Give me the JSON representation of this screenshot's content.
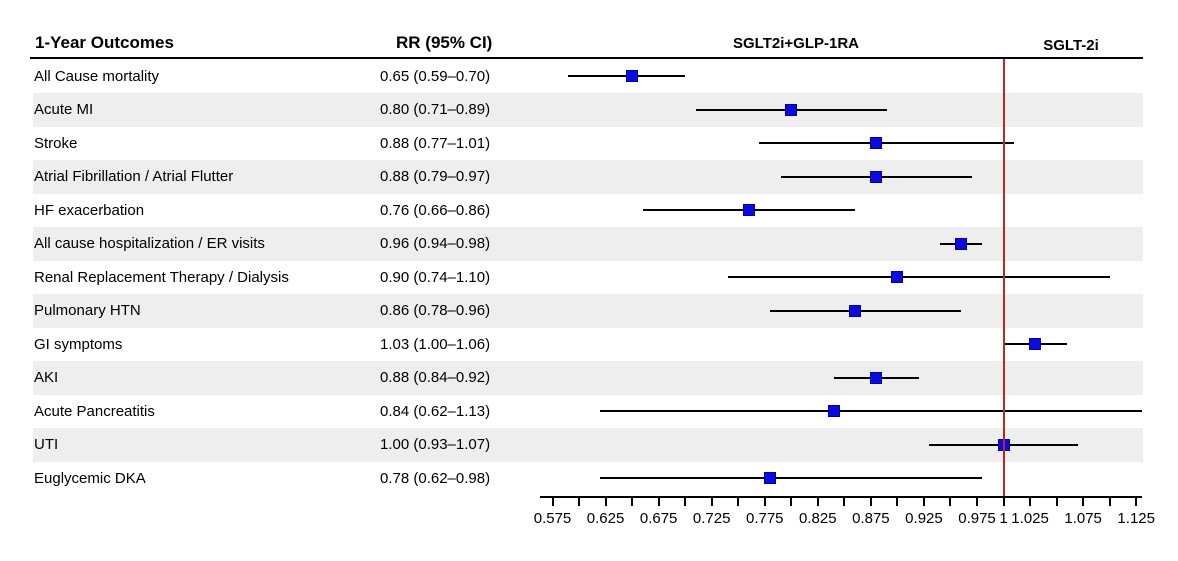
{
  "header": {
    "outcomes_label": "1-Year Outcomes",
    "rr_label": "RR (95% CI)",
    "group_left_label": "SGLT2i+GLP-1RA",
    "group_right_label": "SGLT-2i"
  },
  "chart_data": {
    "type": "scatter",
    "variant": "forest-plot",
    "title": "1-Year Outcomes",
    "xlabel": "RR (95% CI)",
    "x_axis": {
      "min": 0.575,
      "max": 1.125,
      "tick_step": 0.025,
      "labeled_ticks": [
        {
          "value": 0.575,
          "label": "0.575"
        },
        {
          "value": 0.625,
          "label": "0.625"
        },
        {
          "value": 0.675,
          "label": "0.675"
        },
        {
          "value": 0.725,
          "label": "0.725"
        },
        {
          "value": 0.775,
          "label": "0.775"
        },
        {
          "value": 0.825,
          "label": "0.825"
        },
        {
          "value": 0.875,
          "label": "0.875"
        },
        {
          "value": 0.925,
          "label": "0.925"
        },
        {
          "value": 0.975,
          "label": "0.975"
        },
        {
          "value": 1,
          "label": "1"
        },
        {
          "value": 1.025,
          "label": "1.025"
        },
        {
          "value": 1.075,
          "label": "1.075"
        },
        {
          "value": 1.125,
          "label": "1.125"
        }
      ]
    },
    "reference_line_x": 1,
    "rows": [
      {
        "label": "All Cause mortality",
        "rr_text": "0.65 (0.59–0.70)",
        "rr": 0.65,
        "ci_low": 0.59,
        "ci_high": 0.7
      },
      {
        "label": "Acute MI",
        "rr_text": "0.80 (0.71–0.89)",
        "rr": 0.8,
        "ci_low": 0.71,
        "ci_high": 0.89
      },
      {
        "label": "Stroke",
        "rr_text": "0.88 (0.77–1.01)",
        "rr": 0.88,
        "ci_low": 0.77,
        "ci_high": 1.01
      },
      {
        "label": "Atrial Fibrillation / Atrial Flutter",
        "rr_text": "0.88 (0.79–0.97)",
        "rr": 0.88,
        "ci_low": 0.79,
        "ci_high": 0.97
      },
      {
        "label": "HF exacerbation",
        "rr_text": "0.76 (0.66–0.86)",
        "rr": 0.76,
        "ci_low": 0.66,
        "ci_high": 0.86
      },
      {
        "label": "All cause hospitalization / ER visits",
        "rr_text": "0.96 (0.94–0.98)",
        "rr": 0.96,
        "ci_low": 0.94,
        "ci_high": 0.98
      },
      {
        "label": "Renal Replacement Therapy / Dialysis",
        "rr_text": "0.90 (0.74–1.10)",
        "rr": 0.9,
        "ci_low": 0.74,
        "ci_high": 1.1
      },
      {
        "label": "Pulmonary HTN",
        "rr_text": "0.86 (0.78–0.96)",
        "rr": 0.86,
        "ci_low": 0.78,
        "ci_high": 0.96
      },
      {
        "label": "GI symptoms",
        "rr_text": "1.03 (1.00–1.06)",
        "rr": 1.03,
        "ci_low": 1.0,
        "ci_high": 1.06
      },
      {
        "label": "AKI",
        "rr_text": "0.88 (0.84–0.92)",
        "rr": 0.88,
        "ci_low": 0.84,
        "ci_high": 0.92
      },
      {
        "label": "Acute Pancreatitis",
        "rr_text": "0.84 (0.62–1.13)",
        "rr": 0.84,
        "ci_low": 0.62,
        "ci_high": 1.13
      },
      {
        "label": "UTI",
        "rr_text": "1.00 (0.93–1.07)",
        "rr": 1.0,
        "ci_low": 0.93,
        "ci_high": 1.07
      },
      {
        "label": "Euglycemic DKA",
        "rr_text": "0.78 (0.62–0.98)",
        "rr": 0.78,
        "ci_low": 0.62,
        "ci_high": 0.98
      }
    ],
    "legend_position": "none",
    "grid": false
  },
  "colors": {
    "marker_fill": "#0b0be0",
    "marker_border": "#0000a0",
    "reference_line": "#c42421",
    "stripe": "#eeeeee",
    "line": "#000000"
  }
}
